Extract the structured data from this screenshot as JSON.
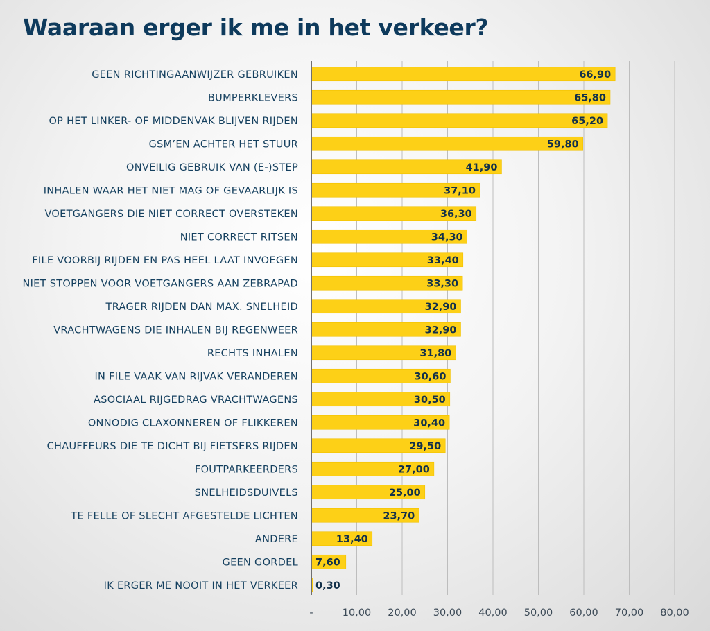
{
  "title": "Waaraan erger ik me in het verkeer?",
  "colors": {
    "bar": "#fdd017",
    "bar_edge": "#f2c200",
    "title": "#0e3a5c",
    "grid": "#bdbdbd",
    "axis": "#6f6f6f"
  },
  "chart_data": {
    "type": "bar",
    "orientation": "horizontal",
    "title": "Waaraan erger ik me in het verkeer?",
    "xlabel": "",
    "ylabel": "",
    "xlim": [
      0,
      80
    ],
    "grid": true,
    "categories": [
      "GEEN RICHTINGAANWIJZER GEBRUIKEN",
      "BUMPERKLEVERS",
      "OP HET LINKER- OF MIDDENVAK BLIJVEN RIJDEN",
      "GSM’EN ACHTER HET STUUR",
      "ONVEILIG GEBRUIK VAN (E-)STEP",
      "INHALEN WAAR HET NIET MAG OF GEVAARLIJK IS",
      "VOETGANGERS DIE NIET CORRECT OVERSTEKEN",
      "NIET CORRECT RITSEN",
      "FILE VOORBIJ RIJDEN EN PAS HEEL LAAT INVOEGEN",
      "NIET STOPPEN VOOR VOETGANGERS AAN ZEBRAPAD",
      "TRAGER RIJDEN DAN MAX. SNELHEID",
      "VRACHTWAGENS DIE INHALEN BIJ REGENWEER",
      "RECHTS INHALEN",
      "IN FILE VAAK VAN RIJVAK VERANDEREN",
      "ASOCIAAL RIJGEDRAG VRACHTWAGENS",
      "ONNODIG CLAXONNEREN OF FLIKKEREN",
      "CHAUFFEURS DIE TE DICHT BIJ FIETSERS RIJDEN",
      "FOUTPARKEERDERS",
      "SNELHEIDSDUIVELS",
      "TE FELLE OF SLECHT AFGESTELDE LICHTEN",
      "ANDERE",
      "GEEN GORDEL",
      "IK ERGER ME NOOIT IN HET VERKEER"
    ],
    "values": [
      66.9,
      65.8,
      65.2,
      59.8,
      41.9,
      37.1,
      36.3,
      34.3,
      33.4,
      33.3,
      32.9,
      32.9,
      31.8,
      30.6,
      30.5,
      30.4,
      29.5,
      27.0,
      25.0,
      23.7,
      13.4,
      7.6,
      0.3
    ],
    "value_labels": [
      "66,90",
      "65,80",
      "65,20",
      "59,80",
      "41,90",
      "37,10",
      "36,30",
      "34,30",
      "33,40",
      "33,30",
      "32,90",
      "32,90",
      "31,80",
      "30,60",
      "30,50",
      "30,40",
      "29,50",
      "27,00",
      "25,00",
      "23,70",
      "13,40",
      "7,60",
      "0,30"
    ],
    "x_ticks": [
      0,
      10,
      20,
      30,
      40,
      50,
      60,
      70,
      80
    ],
    "x_tick_labels": [
      "-",
      "10,00",
      "20,00",
      "30,00",
      "40,00",
      "50,00",
      "60,00",
      "70,00",
      "80,00"
    ]
  }
}
